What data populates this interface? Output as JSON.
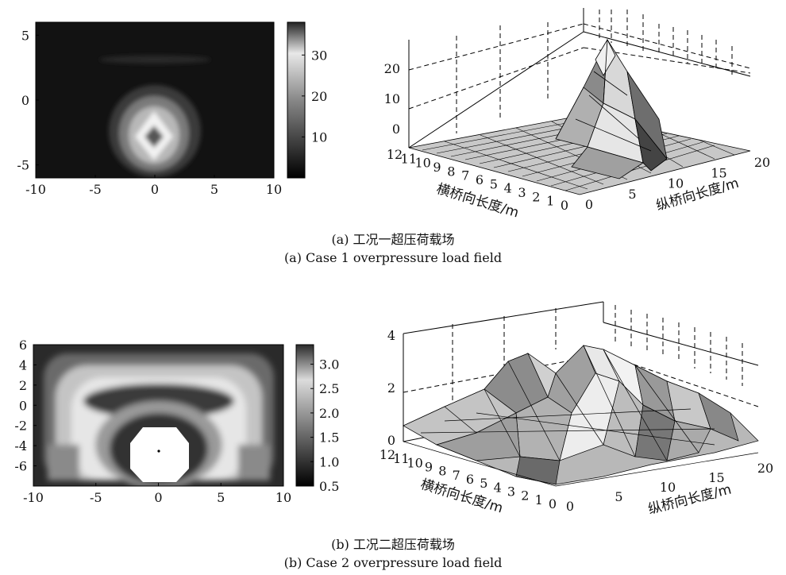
{
  "captions": {
    "a_cn": "(a) 工况一超压荷载场",
    "a_en": "(a) Case 1 overpressure load field",
    "b_cn": "(b) 工况二超压荷载场",
    "b_en": "(b) Case 2 overpressure load field"
  },
  "chart_data": [
    {
      "id": "a-heatmap",
      "type": "heatmap",
      "xlim": [
        -10,
        10
      ],
      "ylim": [
        -6,
        6
      ],
      "xticks": [
        "-10",
        "-5",
        "0",
        "5",
        "10"
      ],
      "yticks": [
        "5",
        "0",
        "-5"
      ],
      "colorbar": {
        "ticks": [
          "30",
          "20",
          "10"
        ],
        "range": [
          0,
          38
        ]
      },
      "peak": {
        "x": 0,
        "y": -3,
        "ring_value": 38,
        "center_value": 10
      }
    },
    {
      "id": "a-surface",
      "type": "surface",
      "zticks": [
        "20",
        "10",
        "0"
      ],
      "xticks_long": [
        "0",
        "5",
        "10",
        "15",
        "20"
      ],
      "yticks_trans": [
        "12",
        "11",
        "10",
        "9",
        "8",
        "7",
        "6",
        "5",
        "4",
        "3",
        "2",
        "1",
        "0"
      ],
      "xlabel": "纵桥向长度/m",
      "ylabel": "横桥向长度/m",
      "zlim": [
        0,
        25
      ]
    },
    {
      "id": "b-heatmap",
      "type": "heatmap",
      "xlim": [
        -10,
        10
      ],
      "ylim": [
        -8,
        6
      ],
      "xticks": [
        "-10",
        "-5",
        "0",
        "5",
        "10"
      ],
      "yticks": [
        "6",
        "4",
        "2",
        "0",
        "-2",
        "-4",
        "-6"
      ],
      "colorbar": {
        "ticks": [
          "3.0",
          "2.5",
          "2.0",
          "1.5",
          "1.0",
          "0.5"
        ],
        "range": [
          0.5,
          3.4
        ]
      }
    },
    {
      "id": "b-surface",
      "type": "surface",
      "zticks": [
        "4",
        "2",
        "0"
      ],
      "xticks_long": [
        "0",
        "5",
        "10",
        "15",
        "20"
      ],
      "yticks_trans": [
        "12",
        "11",
        "10",
        "9",
        "8",
        "7",
        "6",
        "5",
        "4",
        "3",
        "2",
        "1",
        "0"
      ],
      "xlabel": "纵桥向长度/m",
      "ylabel": "横桥向长度/m",
      "zlim": [
        0,
        4
      ]
    }
  ]
}
